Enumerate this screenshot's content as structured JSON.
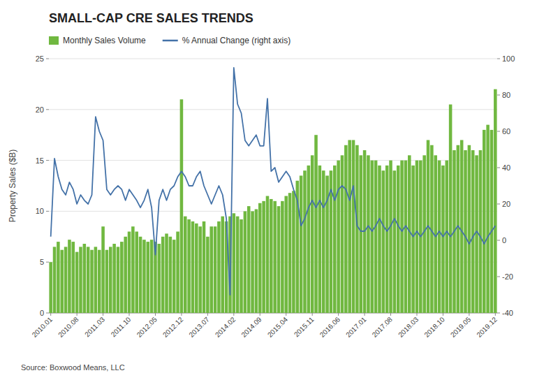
{
  "chart_data": {
    "type": "bar",
    "title": "SMALL-CAP CRE SALES TRENDS",
    "ylabel": "Property Sales ($B)",
    "annotations": [
      "Source: Boxwood Means, LLC"
    ],
    "categories": [
      "2010.01",
      null,
      null,
      null,
      null,
      null,
      null,
      "2010.08",
      null,
      null,
      null,
      null,
      null,
      null,
      "2011.03",
      null,
      null,
      null,
      null,
      null,
      null,
      "2011.10",
      null,
      null,
      null,
      null,
      null,
      null,
      "2012.05",
      null,
      null,
      null,
      null,
      null,
      null,
      "2012.12",
      null,
      null,
      null,
      null,
      null,
      null,
      "2013.07",
      null,
      null,
      null,
      null,
      null,
      null,
      "2014.02",
      null,
      null,
      null,
      null,
      null,
      null,
      "2014.09",
      null,
      null,
      null,
      null,
      null,
      null,
      "2015.04",
      null,
      null,
      null,
      null,
      null,
      null,
      "2015.11",
      null,
      null,
      null,
      null,
      null,
      null,
      "2016.06",
      null,
      null,
      null,
      null,
      null,
      null,
      "2017.01",
      null,
      null,
      null,
      null,
      null,
      null,
      "2017.08",
      null,
      null,
      null,
      null,
      null,
      null,
      "2018.03",
      null,
      null,
      null,
      null,
      null,
      null,
      "2018.10",
      null,
      null,
      null,
      null,
      null,
      null,
      "2019.05",
      null,
      null,
      null,
      null,
      null,
      null,
      "2019.12"
    ],
    "series": [
      {
        "name": "Monthly Sales Volume",
        "type": "bar",
        "color": "#70b840",
        "values": [
          5.0,
          6.5,
          7.0,
          6.2,
          6.5,
          7.2,
          7.0,
          6.0,
          6.5,
          6.8,
          6.5,
          6.2,
          6.5,
          6.2,
          8.5,
          6.2,
          6.5,
          6.8,
          6.5,
          7.0,
          7.5,
          8.0,
          8.5,
          8.0,
          7.5,
          7.2,
          7.0,
          7.2,
          7.0,
          6.8,
          7.5,
          7.8,
          7.5,
          7.2,
          8.0,
          21.0,
          9.5,
          9.2,
          9.0,
          8.8,
          8.5,
          9.0,
          7.5,
          8.5,
          8.5,
          9.0,
          9.5,
          9.0,
          9.5,
          9.8,
          9.5,
          9.2,
          10.0,
          10.5,
          10.0,
          10.2,
          10.8,
          11.0,
          11.5,
          11.2,
          11.0,
          10.5,
          11.0,
          11.5,
          11.8,
          12.0,
          13.0,
          13.5,
          14.0,
          14.5,
          15.5,
          17.5,
          14.5,
          14.0,
          13.5,
          14.0,
          14.5,
          15.0,
          15.5,
          16.5,
          17.0,
          17.0,
          16.5,
          15.5,
          16.0,
          15.5,
          15.0,
          15.0,
          14.5,
          14.0,
          14.5,
          15.0,
          14.0,
          14.5,
          15.0,
          15.0,
          15.5,
          14.5,
          15.0,
          15.0,
          15.5,
          17.0,
          16.5,
          15.5,
          15.0,
          14.5,
          15.0,
          20.5,
          16.0,
          16.5,
          17.0,
          16.0,
          16.5,
          16.0,
          15.5,
          16.0,
          18.0,
          18.5,
          18.0,
          22.0
        ]
      },
      {
        "name": "% Annual Change (right axis)",
        "type": "line",
        "axis": "y2",
        "color": "#4472a8",
        "values": [
          2.0,
          45.0,
          35.0,
          28.0,
          25.0,
          32.0,
          28.0,
          20.0,
          25.0,
          22.0,
          20.0,
          25.0,
          68.0,
          60.0,
          55.0,
          28.0,
          25.0,
          28.0,
          30.0,
          28.0,
          22.0,
          28.0,
          25.0,
          22.0,
          18.0,
          22.0,
          28.0,
          18.0,
          -8.0,
          22.0,
          28.0,
          22.0,
          28.0,
          30.0,
          35.0,
          38.0,
          35.0,
          30.0,
          30.0,
          35.0,
          38.0,
          30.0,
          25.0,
          20.0,
          25.0,
          30.0,
          25.0,
          12.0,
          -30.0,
          95.0,
          75.0,
          70.0,
          55.0,
          52.0,
          55.0,
          58.0,
          52.0,
          52.0,
          78.0,
          38.0,
          40.0,
          32.0,
          35.0,
          38.0,
          35.0,
          28.0,
          22.0,
          8.0,
          12.0,
          18.0,
          22.0,
          18.0,
          22.0,
          18.0,
          22.0,
          28.0,
          22.0,
          28.0,
          30.0,
          28.0,
          22.0,
          30.0,
          8.0,
          5.0,
          5.0,
          8.0,
          5.0,
          8.0,
          12.0,
          8.0,
          5.0,
          8.0,
          12.0,
          8.0,
          5.0,
          8.0,
          5.0,
          2.0,
          5.0,
          2.0,
          5.0,
          8.0,
          5.0,
          2.0,
          5.0,
          2.0,
          5.0,
          2.0,
          5.0,
          8.0,
          5.0,
          2.0,
          -2.0,
          2.0,
          5.0,
          2.0,
          -2.0,
          2.0,
          5.0,
          8.0
        ]
      }
    ],
    "ylim": [
      0,
      25
    ],
    "yticks": [
      0,
      5,
      10,
      15,
      20,
      25
    ],
    "y2lim": [
      -40,
      100
    ],
    "y2ticks": [
      -40,
      -20,
      0,
      20,
      40,
      60,
      80,
      100
    ],
    "grid": true,
    "legend": "top-left"
  }
}
